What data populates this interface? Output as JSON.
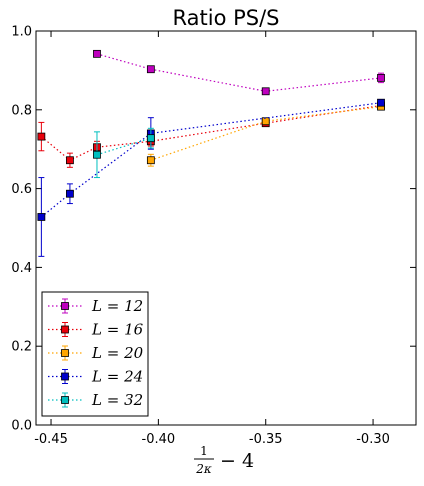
{
  "chart_data": {
    "type": "scatter",
    "title": "Ratio PS/S",
    "xlabel": {
      "frac_num": "1",
      "frac_den": "2κ",
      "rest": "− 4"
    },
    "ylabel": "",
    "xlim": [
      -0.457,
      -0.28
    ],
    "ylim": [
      0.0,
      1.0
    ],
    "xticks": [
      -0.45,
      -0.4,
      -0.35,
      -0.3
    ],
    "xtick_labels": [
      "-0.45",
      "-0.40",
      "-0.35",
      "-0.30"
    ],
    "yticks": [
      0.0,
      0.2,
      0.4,
      0.6,
      0.8,
      1.0
    ],
    "ytick_labels": [
      "0.0",
      "0.2",
      "0.4",
      "0.6",
      "0.8",
      "1.0"
    ],
    "grid": false,
    "legend_position": "lower-left",
    "series": [
      {
        "name": "L = 12",
        "color": "#bf00bf",
        "x": [
          -0.4286,
          -0.4035,
          -0.35,
          -0.2963
        ],
        "y": [
          0.942,
          0.903,
          0.847,
          0.881
        ],
        "err": [
          0.006,
          0.006,
          0.006,
          0.012
        ]
      },
      {
        "name": "L = 16",
        "color": "#e8000b",
        "x": [
          -0.4545,
          -0.4412,
          -0.4286,
          -0.4035,
          -0.35,
          -0.2963
        ],
        "y": [
          0.732,
          0.672,
          0.705,
          0.72,
          0.766,
          0.811
        ],
        "err": [
          0.036,
          0.018,
          0.015,
          0.012,
          0.008,
          0.008
        ]
      },
      {
        "name": "L = 20",
        "color": "#ffa500",
        "x": [
          -0.4035,
          -0.35,
          -0.2963
        ],
        "y": [
          0.672,
          0.771,
          0.808
        ],
        "err": [
          0.015,
          0.008,
          0.008
        ]
      },
      {
        "name": "L = 24",
        "color": "#0000cc",
        "x": [
          -0.4545,
          -0.4412,
          -0.4035,
          -0.2963
        ],
        "y": [
          0.528,
          0.587,
          0.74,
          0.818
        ],
        "err": [
          0.1,
          0.025,
          0.04,
          0.008
        ]
      },
      {
        "name": "L = 32",
        "color": "#00bfbf",
        "x": [
          -0.4286,
          -0.4035
        ],
        "y": [
          0.686,
          0.728
        ],
        "err": [
          0.058,
          0.025
        ]
      }
    ]
  }
}
